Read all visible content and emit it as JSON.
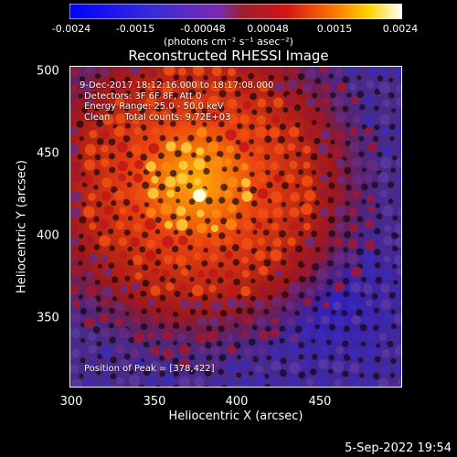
{
  "colorbar": {
    "ticks": [
      "-0.0024",
      "-0.0015",
      "-0.00048",
      "0.00048",
      "0.0015",
      "0.0024"
    ],
    "units": "(photons cm⁻² s⁻¹ asec⁻²)",
    "min": -0.0024,
    "max": 0.0024
  },
  "title": "Reconstructed RHESSI Image",
  "annotations": {
    "time": "9-Dec-2017 18:12:16.000 to 18:17:08.000",
    "detectors": "Detectors: 3F 6F 8F, Att 0",
    "energy": "Energy Range: 25.0 - 50.0 keV",
    "clean": "Clean     Total counts: 9.72E+03",
    "peak": "Position of Peak = [378,422]"
  },
  "axes": {
    "xlabel": "Heliocentric X (arcsec)",
    "ylabel": "Heliocentric Y (arcsec)",
    "xticks": [
      "300",
      "350",
      "400",
      "450"
    ],
    "yticks": [
      "500",
      "450",
      "400",
      "350"
    ],
    "xlim": [
      300,
      490
    ],
    "ylim": [
      305,
      502
    ]
  },
  "footer": {
    "date": "5-Sep-2022 19:54"
  }
}
